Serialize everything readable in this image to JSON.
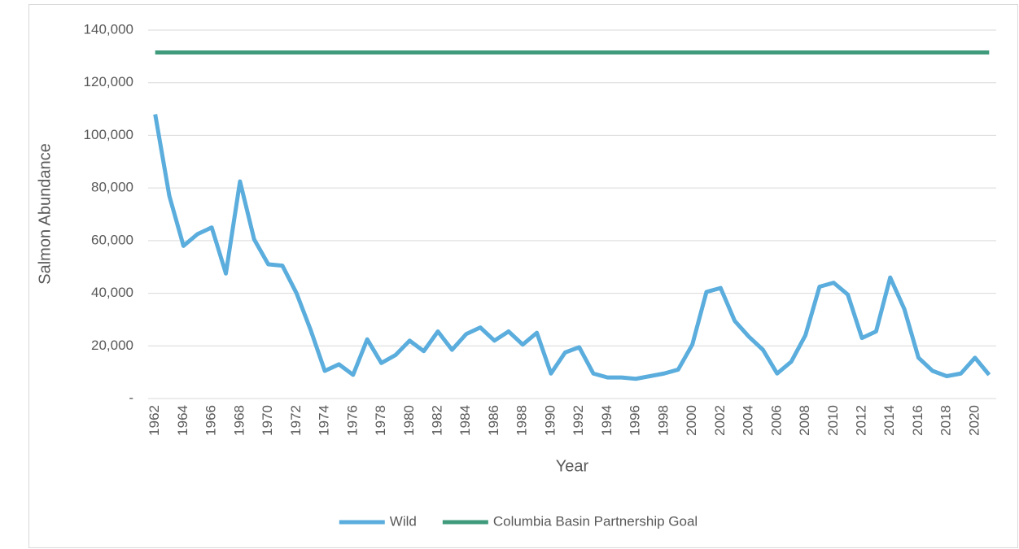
{
  "chart_data": {
    "type": "line",
    "x_label": "Year",
    "y_label": "Salmon Abundance",
    "categories": [
      "1962",
      null,
      "1964",
      null,
      "1966",
      null,
      "1968",
      null,
      "1970",
      null,
      "1972",
      null,
      "1974",
      null,
      "1976",
      null,
      "1978",
      null,
      "1980",
      null,
      "1982",
      null,
      "1984",
      null,
      "1986",
      null,
      "1988",
      null,
      "1990",
      null,
      "1992",
      null,
      "1994",
      null,
      "1996",
      null,
      "1998",
      null,
      "2000",
      null,
      "2002",
      null,
      "2004",
      null,
      "2006",
      null,
      "2008",
      null,
      "2010",
      null,
      "2012",
      null,
      "2014",
      null,
      "2016",
      null,
      "2018",
      null,
      "2020",
      null
    ],
    "series": [
      {
        "name": "Wild",
        "color": "#5aaddc",
        "values": [
          108000,
          77000,
          58000,
          62500,
          65000,
          47500,
          82500,
          60500,
          51000,
          50500,
          40000,
          26000,
          10500,
          13000,
          9000,
          22500,
          13500,
          16500,
          22000,
          18000,
          25500,
          18500,
          24500,
          27000,
          22000,
          25500,
          20500,
          25000,
          9500,
          17500,
          19500,
          9500,
          8000,
          8000,
          7500,
          8500,
          9500,
          11000,
          20500,
          40500,
          42000,
          29500,
          23500,
          18500,
          9500,
          14000,
          24000,
          42500,
          44000,
          39500,
          23000,
          25500,
          46000,
          34000,
          15500,
          10500,
          8500,
          9500,
          15500,
          9000
        ]
      },
      {
        "name": "Columbia Basin Partnership Goal",
        "color": "#3f9b7b",
        "values": [
          131500,
          131500,
          131500,
          131500,
          131500,
          131500,
          131500,
          131500,
          131500,
          131500,
          131500,
          131500,
          131500,
          131500,
          131500,
          131500,
          131500,
          131500,
          131500,
          131500,
          131500,
          131500,
          131500,
          131500,
          131500,
          131500,
          131500,
          131500,
          131500,
          131500,
          131500,
          131500,
          131500,
          131500,
          131500,
          131500,
          131500,
          131500,
          131500,
          131500,
          131500,
          131500,
          131500,
          131500,
          131500,
          131500,
          131500,
          131500,
          131500,
          131500,
          131500,
          131500,
          131500,
          131500,
          131500,
          131500,
          131500,
          131500,
          131500,
          131500
        ]
      }
    ],
    "ylim": [
      0,
      140000
    ],
    "yticks": [
      {
        "value": 0,
        "label": "-"
      },
      {
        "value": 20000,
        "label": "20,000"
      },
      {
        "value": 40000,
        "label": "40,000"
      },
      {
        "value": 60000,
        "label": "60,000"
      },
      {
        "value": 80000,
        "label": "80,000"
      },
      {
        "value": 100000,
        "label": "100,000"
      },
      {
        "value": 120000,
        "label": "120,000"
      },
      {
        "value": 140000,
        "label": "140,000"
      }
    ],
    "grid": true,
    "legend": "bottom"
  }
}
